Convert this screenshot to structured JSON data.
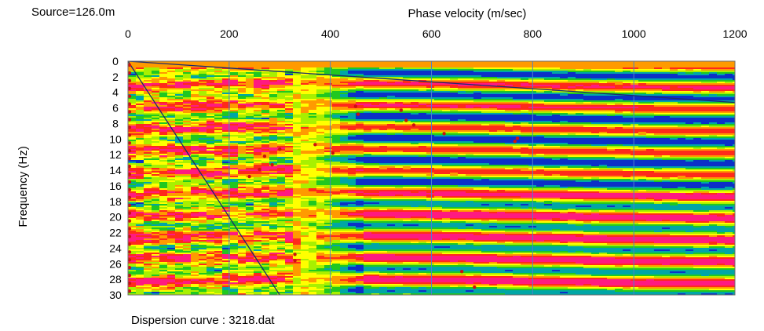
{
  "header": {
    "source_label": "Source=126.0m"
  },
  "footer": {
    "dispersion_label": "Dispersion curve : 3218.dat"
  },
  "chart_data": {
    "type": "heatmap",
    "title": "",
    "xlabel": "Phase velocity (m/sec)",
    "ylabel": "Frequency (Hz)",
    "x_axis_position": "top",
    "y_axis_inverted": true,
    "xlim": [
      0,
      1200
    ],
    "ylim": [
      0,
      30
    ],
    "x_ticks": [
      "0",
      "200",
      "400",
      "600",
      "800",
      "1000",
      "1200"
    ],
    "y_ticks": [
      "0",
      "2",
      "4",
      "6",
      "8",
      "10",
      "12",
      "14",
      "16",
      "18",
      "20",
      "22",
      "24",
      "26",
      "28",
      "30"
    ],
    "grid": true,
    "colormap": [
      "#0b30c8",
      "#00a6a6",
      "#20c820",
      "#a8f000",
      "#ffff00",
      "#ff9a00",
      "#ff2a1a",
      "#ff1a80"
    ],
    "reference_lines": [
      {
        "x": [
          0,
          1200
        ],
        "y": [
          0,
          5.3
        ]
      },
      {
        "x": [
          0,
          300
        ],
        "y": [
          0,
          30
        ]
      }
    ],
    "picked_points": [
      {
        "x": 450,
        "y": 5.8
      },
      {
        "x": 455,
        "y": 6.8
      },
      {
        "x": 540,
        "y": 6.3
      },
      {
        "x": 550,
        "y": 7.6
      },
      {
        "x": 565,
        "y": 8.2
      },
      {
        "x": 625,
        "y": 9.3
      },
      {
        "x": 770,
        "y": 9.9
      },
      {
        "x": 765,
        "y": 10.3
      },
      {
        "x": 370,
        "y": 10.7
      },
      {
        "x": 300,
        "y": 11.3
      },
      {
        "x": 405,
        "y": 11.8
      },
      {
        "x": 270,
        "y": 12.2
      },
      {
        "x": 285,
        "y": 13.3
      },
      {
        "x": 260,
        "y": 13.9
      },
      {
        "x": 240,
        "y": 14.8
      },
      {
        "x": 330,
        "y": 24.8
      },
      {
        "x": 330,
        "y": 25.6
      },
      {
        "x": 660,
        "y": 27.0
      },
      {
        "x": 685,
        "y": 29.0
      },
      {
        "x": 3,
        "y": 0.5
      },
      {
        "x": 3,
        "y": 1.5
      },
      {
        "x": 3,
        "y": 2.5
      },
      {
        "x": 3,
        "y": 3.5
      },
      {
        "x": 3,
        "y": 4.5
      },
      {
        "x": 3,
        "y": 5.5
      },
      {
        "x": 3,
        "y": 6.5
      },
      {
        "x": 3,
        "y": 7.5
      },
      {
        "x": 3,
        "y": 8.5
      },
      {
        "x": 3,
        "y": 9.5
      },
      {
        "x": 3,
        "y": 10.5
      },
      {
        "x": 3,
        "y": 11.5
      },
      {
        "x": 3,
        "y": 12.5
      },
      {
        "x": 3,
        "y": 13.5
      },
      {
        "x": 3,
        "y": 14.5
      },
      {
        "x": 3,
        "y": 15.5
      },
      {
        "x": 3,
        "y": 16.5
      },
      {
        "x": 3,
        "y": 17.5
      },
      {
        "x": 3,
        "y": 18.5
      },
      {
        "x": 3,
        "y": 19.5
      },
      {
        "x": 3,
        "y": 20.5
      },
      {
        "x": 3,
        "y": 21.5
      },
      {
        "x": 3,
        "y": 22.5
      },
      {
        "x": 3,
        "y": 23.5
      },
      {
        "x": 3,
        "y": 24.5
      },
      {
        "x": 3,
        "y": 25.5
      },
      {
        "x": 3,
        "y": 26.5
      },
      {
        "x": 3,
        "y": 27.5
      },
      {
        "x": 3,
        "y": 28.5
      },
      {
        "x": 3,
        "y": 29.5
      }
    ]
  }
}
